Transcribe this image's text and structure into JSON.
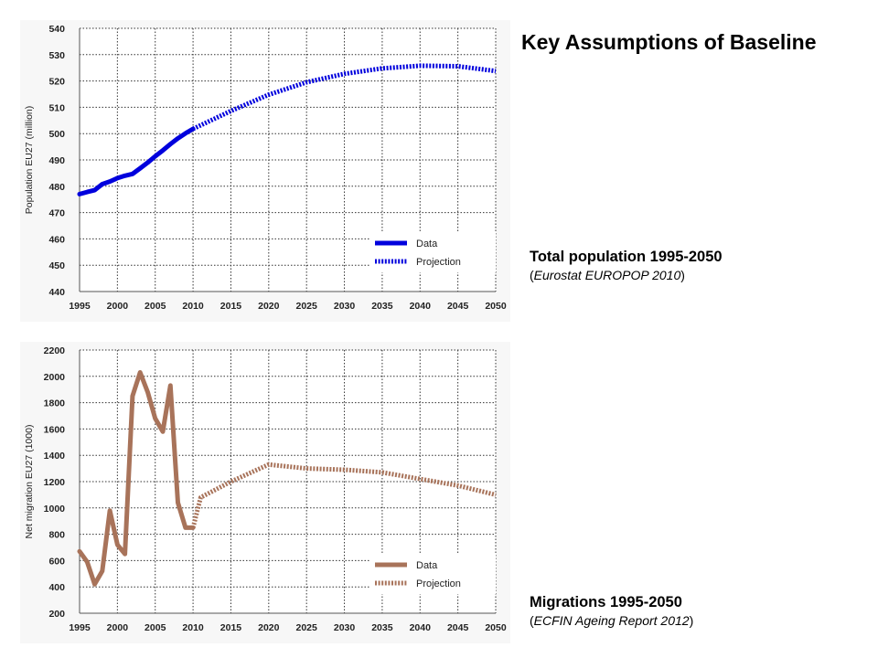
{
  "slide": {
    "title": "Key Assumptions of Baseline"
  },
  "captions": {
    "top": {
      "title": "Total population 1995-2050",
      "source_prefix": "(",
      "source": "Eurostat EUROPOP 2010",
      "source_suffix": ")"
    },
    "bottom": {
      "title": "Migrations 1995-2050",
      "source_prefix": "(",
      "source": "ECFIN Ageing Report 2012",
      "source_suffix": ")"
    }
  },
  "chart_data": [
    {
      "type": "line",
      "ylabel": "Population EU27 (million)",
      "xlabel": "",
      "xlim": [
        1995,
        2050
      ],
      "ylim": [
        440,
        540
      ],
      "x_ticks": [
        1995,
        2000,
        2005,
        2010,
        2015,
        2020,
        2025,
        2030,
        2035,
        2040,
        2045,
        2050
      ],
      "y_ticks": [
        440,
        450,
        460,
        470,
        480,
        490,
        500,
        510,
        520,
        530,
        540
      ],
      "grid": true,
      "legend_position": "bottom-right",
      "series": [
        {
          "name": "Data",
          "style": "solid",
          "color": "#0000dd",
          "x": [
            1995,
            1996,
            1997,
            1998,
            1999,
            2000,
            2001,
            2002,
            2003,
            2004,
            2005,
            2006,
            2007,
            2008,
            2009,
            2010
          ],
          "y": [
            477.0,
            477.8,
            478.5,
            480.8,
            481.8,
            483.1,
            484.0,
            484.7,
            486.8,
            489.0,
            491.4,
            493.6,
            496.0,
            498.2,
            500.1,
            501.8
          ]
        },
        {
          "name": "Projection",
          "style": "dotted",
          "color": "#0000dd",
          "x": [
            2010,
            2015,
            2020,
            2025,
            2030,
            2035,
            2040,
            2045,
            2050
          ],
          "y": [
            501.8,
            508.6,
            514.8,
            519.5,
            522.7,
            524.8,
            525.8,
            525.6,
            523.8
          ]
        }
      ]
    },
    {
      "type": "line",
      "ylabel": "Net migration EU27 (1000)",
      "xlabel": "",
      "xlim": [
        1995,
        2050
      ],
      "ylim": [
        200,
        2200
      ],
      "x_ticks": [
        1995,
        2000,
        2005,
        2010,
        2015,
        2020,
        2025,
        2030,
        2035,
        2040,
        2045,
        2050
      ],
      "y_ticks": [
        200,
        400,
        600,
        800,
        1000,
        1200,
        1400,
        1600,
        1800,
        2000,
        2200
      ],
      "grid": true,
      "legend_position": "bottom-right",
      "series": [
        {
          "name": "Data",
          "style": "solid",
          "color": "#a8735a",
          "x": [
            1995,
            1996,
            1997,
            1998,
            1999,
            2000,
            2001,
            2002,
            2003,
            2004,
            2005,
            2006,
            2007,
            2008,
            2009,
            2010
          ],
          "y": [
            670,
            590,
            420,
            520,
            980,
            720,
            650,
            1850,
            2030,
            1880,
            1680,
            1580,
            1930,
            1040,
            850,
            850
          ]
        },
        {
          "name": "Projection",
          "style": "dotted",
          "color": "#a8735a",
          "x": [
            2010,
            2011,
            2015,
            2020,
            2025,
            2030,
            2035,
            2040,
            2045,
            2050
          ],
          "y": [
            850,
            1080,
            1200,
            1330,
            1300,
            1290,
            1270,
            1220,
            1170,
            1100
          ]
        }
      ]
    }
  ]
}
